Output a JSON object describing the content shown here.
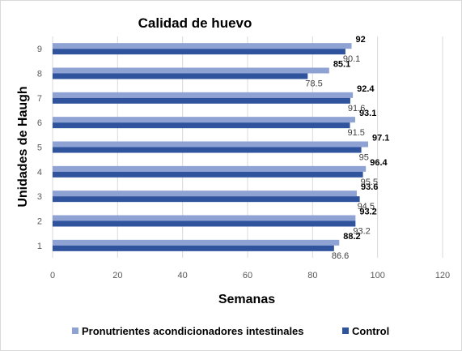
{
  "chart_data": {
    "type": "bar",
    "orientation": "horizontal",
    "title": "Calidad de huevo",
    "xlabel": "Semanas",
    "ylabel": "Unidades de Haugh",
    "categories": [
      "1",
      "2",
      "3",
      "4",
      "5",
      "6",
      "7",
      "8",
      "9"
    ],
    "series": [
      {
        "name": "Pronutrientes acondicionadores intestinales",
        "color": "#8fa2d4",
        "values": [
          88.2,
          93.2,
          93.6,
          96.4,
          97.1,
          93.1,
          92.4,
          85.1,
          92
        ]
      },
      {
        "name": "Control",
        "color": "#2f539c",
        "values": [
          86.6,
          93.2,
          94.5,
          95.5,
          95,
          91.5,
          91.6,
          78.5,
          90.1
        ]
      }
    ],
    "xlim": [
      0,
      120
    ],
    "xticks": [
      0,
      20,
      40,
      60,
      80,
      100,
      120
    ],
    "grid": true,
    "legend_position": "bottom"
  }
}
